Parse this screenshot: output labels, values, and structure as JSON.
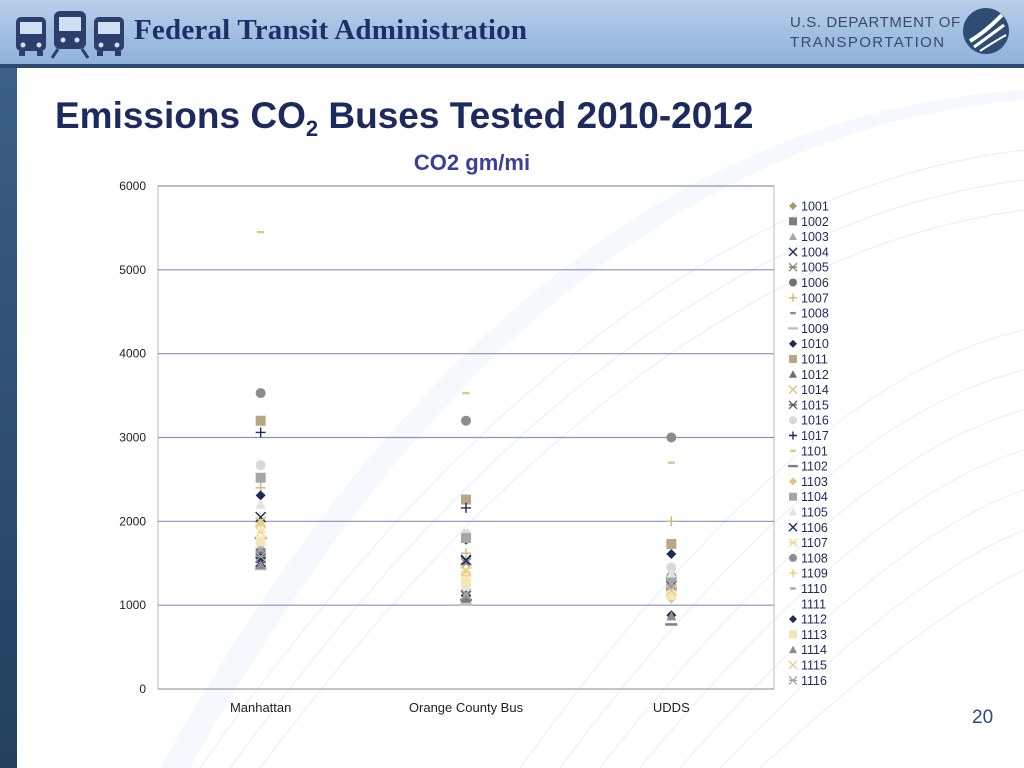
{
  "header": {
    "agency_name": "Federal Transit Administration",
    "dot_line1": "U.S. DEPARTMENT OF",
    "dot_line2": "TRANSPORTATION",
    "logo_icons": [
      "bus-icon",
      "train-icon",
      "bus-icon"
    ],
    "dot-logo-icon": "highway-swoosh-icon"
  },
  "slide": {
    "title_pre": "Emissions CO",
    "title_sub": "2",
    "title_post": " Buses Tested 2010-2012",
    "page_number": "20"
  },
  "colors": {
    "navy": "#1c2a5e",
    "tan": "#b5a882",
    "gray": "#8c8c8c",
    "gold": "#d9c58a",
    "gridline": "#8a93b8"
  },
  "chart_data": {
    "type": "scatter",
    "title": "CO2 gm/mi",
    "categories": [
      "Manhattan",
      "Orange County Bus",
      "UDDS"
    ],
    "ylim": [
      0,
      6000
    ],
    "yticks": [
      0,
      1000,
      2000,
      3000,
      4000,
      5000,
      6000
    ],
    "grid": true,
    "legend_position": "right",
    "series": [
      {
        "name": "1001",
        "marker": "diamond",
        "color": "#a89a6e",
        "values": [
          1600,
          null,
          null
        ]
      },
      {
        "name": "1002",
        "marker": "square",
        "color": "#7f7f7f",
        "values": [
          1620,
          null,
          null
        ]
      },
      {
        "name": "1003",
        "marker": "triangle",
        "color": "#a6a6a6",
        "values": [
          1650,
          null,
          null
        ]
      },
      {
        "name": "1004",
        "marker": "x",
        "color": "#1c2a5e",
        "values": [
          1520,
          1540,
          1260
        ]
      },
      {
        "name": "1005",
        "marker": "star",
        "color": "#8c8470",
        "values": [
          1560,
          1500,
          1280
        ]
      },
      {
        "name": "1006",
        "marker": "circle",
        "color": "#737373",
        "values": [
          1580,
          null,
          1340
        ]
      },
      {
        "name": "1007",
        "marker": "plus",
        "color": "#d4b870",
        "values": [
          2400,
          1620,
          2000
        ]
      },
      {
        "name": "1008",
        "marker": "dash",
        "color": "#8c8c8c",
        "values": [
          2180,
          1100,
          1320
        ]
      },
      {
        "name": "1009",
        "marker": "longdash",
        "color": "#bfbfbf",
        "values": [
          1430,
          1010,
          770
        ]
      },
      {
        "name": "1010",
        "marker": "diamond",
        "color": "#1c2a5e",
        "values": [
          2310,
          1780,
          1610
        ]
      },
      {
        "name": "1011",
        "marker": "square",
        "color": "#b5a882",
        "values": [
          3200,
          2260,
          1730
        ]
      },
      {
        "name": "1012",
        "marker": "triangle",
        "color": "#6f6f6f",
        "values": [
          1560,
          1080,
          1290
        ]
      },
      {
        "name": "1014",
        "marker": "x",
        "color": "#e0c680",
        "values": [
          1980,
          1420,
          1180
        ]
      },
      {
        "name": "1015",
        "marker": "star",
        "color": "#595959",
        "values": [
          1510,
          1110,
          1250
        ]
      },
      {
        "name": "1016",
        "marker": "circle",
        "color": "#d9d9d9",
        "values": [
          2670,
          1850,
          1450
        ]
      },
      {
        "name": "1017",
        "marker": "plus",
        "color": "#1c2a5e",
        "values": [
          3060,
          2160,
          1150
        ]
      },
      {
        "name": "1101",
        "marker": "dash",
        "color": "#d9c58a",
        "values": [
          5450,
          3530,
          2700
        ]
      },
      {
        "name": "1102",
        "marker": "longdash",
        "color": "#7f7f7f",
        "values": [
          1800,
          1060,
          770
        ]
      },
      {
        "name": "1103",
        "marker": "diamond",
        "color": "#e0c680",
        "values": [
          2000,
          1260,
          1080
        ]
      },
      {
        "name": "1104",
        "marker": "square",
        "color": "#a6a6a6",
        "values": [
          2520,
          1800,
          1300
        ]
      },
      {
        "name": "1105",
        "marker": "triangle",
        "color": "#e3e3e3",
        "values": [
          2200,
          1230,
          1380
        ]
      },
      {
        "name": "1106",
        "marker": "x",
        "color": "#1c2a5e",
        "values": [
          2050,
          1530,
          1230
        ]
      },
      {
        "name": "1107",
        "marker": "star",
        "color": "#f0d890",
        "values": [
          1870,
          1400,
          1200
        ]
      },
      {
        "name": "1108",
        "marker": "circle",
        "color": "#8c8c8c",
        "values": [
          3530,
          3200,
          3000
        ]
      },
      {
        "name": "1109",
        "marker": "plus",
        "color": "#f0d070",
        "values": [
          1950,
          1350,
          1160
        ]
      },
      {
        "name": "1110",
        "marker": "dash",
        "color": "#a6a6a6",
        "values": [
          1700,
          1300,
          1200
        ]
      },
      {
        "name": "1111",
        "marker": "none",
        "color": "#ffffff",
        "values": [
          null,
          null,
          null
        ]
      },
      {
        "name": "1112",
        "marker": "diamond",
        "color": "#1c2a5e",
        "values": [
          1560,
          1120,
          880
        ]
      },
      {
        "name": "1113",
        "marker": "square",
        "color": "#f3e6b8",
        "values": [
          1760,
          1270,
          1120
        ]
      },
      {
        "name": "1114",
        "marker": "triangle",
        "color": "#8c8c8c",
        "values": [
          1480,
          1120,
          870
        ]
      },
      {
        "name": "1115",
        "marker": "x",
        "color": "#e8cf8a",
        "values": [
          2000,
          1420,
          1170
        ]
      },
      {
        "name": "1116",
        "marker": "star",
        "color": "#a6a6a6",
        "values": [
          1580,
          1130,
          1240
        ]
      }
    ]
  }
}
